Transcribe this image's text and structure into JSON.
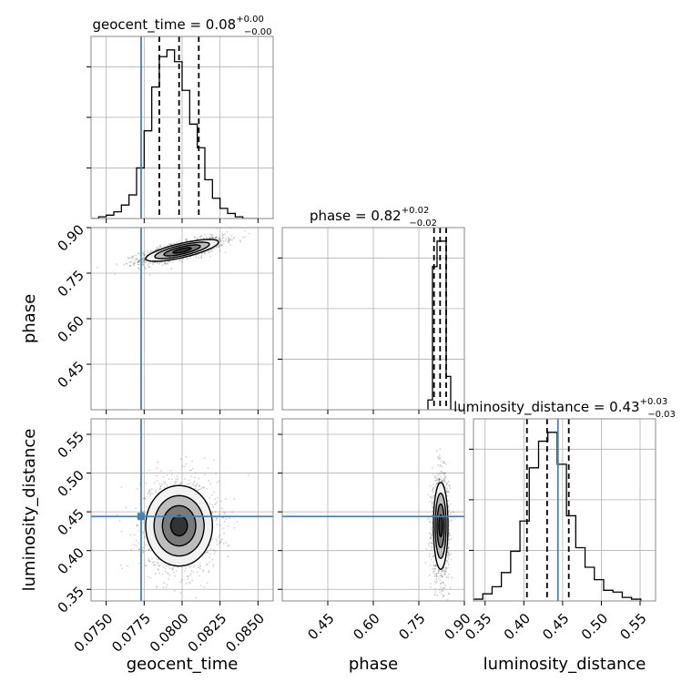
{
  "chart_data": {
    "type": "corner",
    "parameters": [
      "geocent_time",
      "phase",
      "luminosity_distance"
    ],
    "truths": {
      "geocent_time": 0.0773,
      "phase": null,
      "luminosity_distance": 0.444
    },
    "truth_color": "#4682b4",
    "axes": {
      "geocent_time": {
        "range": [
          0.074,
          0.086
        ],
        "ticks": [
          0.075,
          0.0775,
          0.08,
          0.0825,
          0.085
        ],
        "tick_labels": [
          "0.0750",
          "0.0775",
          "0.0800",
          "0.0825",
          "0.0850"
        ],
        "label": "geocent_time"
      },
      "phase": {
        "range": [
          0.3,
          0.9
        ],
        "ticks": [
          0.45,
          0.6,
          0.75,
          0.9
        ],
        "tick_labels": [
          "0.45",
          "0.60",
          "0.75",
          "0.90"
        ],
        "label": "phase"
      },
      "luminosity_distance": {
        "range": [
          0.335,
          0.57
        ],
        "ticks": [
          0.35,
          0.4,
          0.45,
          0.5,
          0.55
        ],
        "tick_labels": [
          "0.35",
          "0.40",
          "0.45",
          "0.50",
          "0.55"
        ],
        "label": "luminosity_distance"
      }
    },
    "titles": {
      "geocent_time": {
        "main": "geocent_time = 0.08",
        "sup": "+0.00",
        "sub": "−0.00"
      },
      "phase": {
        "main": "phase = 0.82",
        "sup": "+0.02",
        "sub": "−0.02"
      },
      "luminosity_distance": {
        "main": "luminosity_distance = 0.43",
        "sup": "+0.03",
        "sub": "−0.03"
      }
    },
    "quantiles": {
      "geocent_time": [
        0.0785,
        0.0798,
        0.0811
      ],
      "phase": [
        0.8,
        0.82,
        0.84
      ],
      "luminosity_distance": [
        0.404,
        0.43,
        0.458
      ]
    },
    "histograms": {
      "geocent_time": {
        "edges": [
          0.074,
          0.0745,
          0.075,
          0.0755,
          0.076,
          0.0765,
          0.077,
          0.0775,
          0.078,
          0.0785,
          0.079,
          0.0795,
          0.08,
          0.0805,
          0.081,
          0.0815,
          0.082,
          0.0825,
          0.083,
          0.0835,
          0.084,
          0.0845,
          0.085
        ],
        "counts": [
          0.0,
          0.01,
          0.02,
          0.04,
          0.08,
          0.14,
          0.3,
          0.52,
          0.78,
          0.96,
          1.0,
          0.93,
          0.76,
          0.56,
          0.42,
          0.23,
          0.12,
          0.06,
          0.03,
          0.01,
          0.0,
          0.0
        ]
      },
      "phase": {
        "edges": [
          0.78,
          0.795,
          0.81,
          0.825,
          0.84,
          0.855,
          0.87
        ],
        "counts": [
          0.05,
          0.73,
          0.86,
          0.86,
          0.17,
          0.0
        ]
      },
      "luminosity_distance": {
        "edges": [
          0.335,
          0.347,
          0.359,
          0.371,
          0.383,
          0.395,
          0.407,
          0.419,
          0.431,
          0.443,
          0.455,
          0.467,
          0.479,
          0.491,
          0.503,
          0.515,
          0.527,
          0.539,
          0.551
        ],
        "counts": [
          0.01,
          0.04,
          0.08,
          0.16,
          0.28,
          0.45,
          0.75,
          0.9,
          0.95,
          0.77,
          0.48,
          0.3,
          0.19,
          0.12,
          0.06,
          0.05,
          0.02,
          0.01
        ]
      }
    },
    "blobs": {
      "geocent_time|phase": {
        "cx": 0.08,
        "cy": 0.825,
        "sx": 0.0012,
        "sy": 0.018,
        "rho": 0.75
      },
      "geocent_time|luminosity_distance": {
        "cx": 0.0798,
        "cy": 0.432,
        "sx": 0.0011,
        "sy": 0.026,
        "rho": 0.0
      },
      "phase|luminosity_distance": {
        "cx": 0.822,
        "cy": 0.432,
        "sx": 0.012,
        "sy": 0.028,
        "rho": 0.0
      }
    }
  }
}
